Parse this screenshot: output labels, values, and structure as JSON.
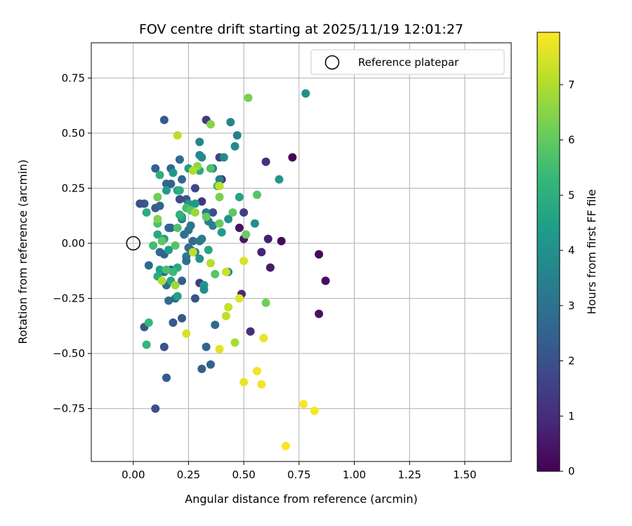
{
  "chart_data": {
    "type": "scatter",
    "title": "FOV centre drift starting at 2025/11/19 12:01:27",
    "xlabel": "Angular distance from reference (arcmin)",
    "ylabel": "Rotation from reference (arcmin)",
    "xlim": [
      -0.19,
      1.71
    ],
    "ylim": [
      -0.99,
      0.91
    ],
    "xticks": [
      "0.00",
      "0.25",
      "0.50",
      "0.75",
      "1.00",
      "1.25",
      "1.50"
    ],
    "xtick_values": [
      0,
      0.25,
      0.5,
      0.75,
      1.0,
      1.25,
      1.5
    ],
    "yticks": [
      "0.75",
      "0.50",
      "0.25",
      "0.00",
      "−0.25",
      "−0.50",
      "−0.75"
    ],
    "ytick_values": [
      0.75,
      0.5,
      0.25,
      0,
      -0.25,
      -0.5,
      -0.75
    ],
    "grid": true,
    "legend": {
      "position": "top-right",
      "label": "Reference platepar"
    },
    "reference_marker": {
      "x": 0,
      "y": 0
    },
    "colorbar": {
      "label": "Hours from first FF file",
      "min": 0,
      "max": 7.95,
      "ticks": [
        "0",
        "1",
        "2",
        "3",
        "4",
        "5",
        "6",
        "7"
      ],
      "tick_values": [
        0,
        1,
        2,
        3,
        4,
        5,
        6,
        7
      ],
      "colormap_stops": [
        "#440154",
        "#482878",
        "#3e4989",
        "#31688e",
        "#26828e",
        "#1f9e89",
        "#35b779",
        "#6ece58",
        "#b5de2b",
        "#fde725"
      ]
    },
    "points": [
      {
        "x": 0.72,
        "y": 0.39,
        "h": 0.1
      },
      {
        "x": 0.67,
        "y": 0.01,
        "h": 0.2
      },
      {
        "x": 0.84,
        "y": -0.05,
        "h": 0.2
      },
      {
        "x": 0.87,
        "y": -0.17,
        "h": 0.3
      },
      {
        "x": 0.84,
        "y": -0.32,
        "h": 0.4
      },
      {
        "x": 0.48,
        "y": 0.07,
        "h": 0.4
      },
      {
        "x": 0.5,
        "y": 0.02,
        "h": 0.5
      },
      {
        "x": 0.62,
        "y": -0.11,
        "h": 0.6
      },
      {
        "x": 0.61,
        "y": 0.02,
        "h": 0.7
      },
      {
        "x": 0.58,
        "y": -0.04,
        "h": 0.8
      },
      {
        "x": 0.49,
        "y": -0.23,
        "h": 0.9
      },
      {
        "x": 0.53,
        "y": -0.4,
        "h": 1.0
      },
      {
        "x": 0.6,
        "y": 0.37,
        "h": 1.1
      },
      {
        "x": 0.4,
        "y": 0.29,
        "h": 1.2
      },
      {
        "x": 0.33,
        "y": 0.56,
        "h": 1.3
      },
      {
        "x": 0.3,
        "y": -0.18,
        "h": 1.4
      },
      {
        "x": 0.31,
        "y": 0.19,
        "h": 1.3
      },
      {
        "x": 0.5,
        "y": 0.14,
        "h": 1.5
      },
      {
        "x": 0.39,
        "y": 0.39,
        "h": 1.6
      },
      {
        "x": 0.28,
        "y": 0.25,
        "h": 1.7
      },
      {
        "x": 0.26,
        "y": -0.03,
        "h": 1.8
      },
      {
        "x": 0.36,
        "y": 0.14,
        "h": 1.9
      },
      {
        "x": 0.28,
        "y": -0.25,
        "h": 2.0
      },
      {
        "x": 0.24,
        "y": 0.2,
        "h": 2.1
      },
      {
        "x": 0.21,
        "y": 0.2,
        "h": 1.9
      },
      {
        "x": 0.05,
        "y": 0.18,
        "h": 2.2
      },
      {
        "x": 0.03,
        "y": 0.18,
        "h": 2.0
      },
      {
        "x": 0.05,
        "y": -0.38,
        "h": 2.2
      },
      {
        "x": 0.1,
        "y": -0.75,
        "h": 2.0
      },
      {
        "x": 0.14,
        "y": -0.47,
        "h": 2.1
      },
      {
        "x": 0.14,
        "y": 0.56,
        "h": 2.3
      },
      {
        "x": 0.1,
        "y": 0.34,
        "h": 2.4
      },
      {
        "x": 0.1,
        "y": 0.16,
        "h": 2.3
      },
      {
        "x": 0.12,
        "y": 0.17,
        "h": 2.5
      },
      {
        "x": 0.15,
        "y": 0.27,
        "h": 2.6
      },
      {
        "x": 0.17,
        "y": 0.27,
        "h": 2.5
      },
      {
        "x": 0.17,
        "y": 0.34,
        "h": 2.7
      },
      {
        "x": 0.22,
        "y": 0.29,
        "h": 2.6
      },
      {
        "x": 0.21,
        "y": 0.38,
        "h": 2.8
      },
      {
        "x": 0.17,
        "y": -0.12,
        "h": 2.4
      },
      {
        "x": 0.14,
        "y": -0.13,
        "h": 2.6
      },
      {
        "x": 0.12,
        "y": -0.04,
        "h": 2.7
      },
      {
        "x": 0.14,
        "y": -0.05,
        "h": 2.5
      },
      {
        "x": 0.15,
        "y": -0.19,
        "h": 2.8
      },
      {
        "x": 0.16,
        "y": -0.26,
        "h": 2.9
      },
      {
        "x": 0.18,
        "y": -0.36,
        "h": 2.3
      },
      {
        "x": 0.22,
        "y": -0.34,
        "h": 2.2
      },
      {
        "x": 0.22,
        "y": -0.17,
        "h": 2.4
      },
      {
        "x": 0.19,
        "y": -0.25,
        "h": 2.7
      },
      {
        "x": 0.31,
        "y": -0.57,
        "h": 2.4
      },
      {
        "x": 0.33,
        "y": -0.47,
        "h": 2.6
      },
      {
        "x": 0.35,
        "y": -0.55,
        "h": 2.5
      },
      {
        "x": 0.15,
        "y": -0.61,
        "h": 2.3
      },
      {
        "x": 0.37,
        "y": -0.37,
        "h": 2.7
      },
      {
        "x": 0.07,
        "y": -0.1,
        "h": 2.8
      },
      {
        "x": 0.16,
        "y": 0.07,
        "h": 2.9
      },
      {
        "x": 0.17,
        "y": 0.07,
        "h": 2.6
      },
      {
        "x": 0.25,
        "y": -0.02,
        "h": 2.9
      },
      {
        "x": 0.27,
        "y": 0.01,
        "h": 2.8
      },
      {
        "x": 0.25,
        "y": 0.06,
        "h": 3.0
      },
      {
        "x": 0.26,
        "y": 0.08,
        "h": 3.1
      },
      {
        "x": 0.28,
        "y": -0.04,
        "h": 3.2
      },
      {
        "x": 0.24,
        "y": -0.06,
        "h": 3.3
      },
      {
        "x": 0.24,
        "y": -0.08,
        "h": 2.9
      },
      {
        "x": 0.23,
        "y": 0.04,
        "h": 3.0
      },
      {
        "x": 0.22,
        "y": 0.11,
        "h": 3.1
      },
      {
        "x": 0.3,
        "y": 0.01,
        "h": 3.0
      },
      {
        "x": 0.31,
        "y": 0.02,
        "h": 3.3
      },
      {
        "x": 0.34,
        "y": 0.1,
        "h": 3.5
      },
      {
        "x": 0.36,
        "y": 0.08,
        "h": 3.4
      },
      {
        "x": 0.33,
        "y": 0.14,
        "h": 3.2
      },
      {
        "x": 0.3,
        "y": 0.46,
        "h": 3.6
      },
      {
        "x": 0.3,
        "y": 0.4,
        "h": 3.7
      },
      {
        "x": 0.31,
        "y": 0.39,
        "h": 3.8
      },
      {
        "x": 0.36,
        "y": 0.34,
        "h": 3.5
      },
      {
        "x": 0.39,
        "y": 0.29,
        "h": 3.4
      },
      {
        "x": 0.41,
        "y": 0.39,
        "h": 3.8
      },
      {
        "x": 0.44,
        "y": 0.55,
        "h": 3.6
      },
      {
        "x": 0.46,
        "y": 0.44,
        "h": 3.7
      },
      {
        "x": 0.47,
        "y": 0.49,
        "h": 3.5
      },
      {
        "x": 0.55,
        "y": 0.09,
        "h": 3.9
      },
      {
        "x": 0.78,
        "y": 0.68,
        "h": 3.9
      },
      {
        "x": 0.66,
        "y": 0.29,
        "h": 4.2
      },
      {
        "x": 0.43,
        "y": 0.11,
        "h": 4.0
      },
      {
        "x": 0.4,
        "y": 0.05,
        "h": 4.3
      },
      {
        "x": 0.43,
        "y": -0.13,
        "h": 4.1
      },
      {
        "x": 0.32,
        "y": -0.19,
        "h": 4.2
      },
      {
        "x": 0.32,
        "y": -0.21,
        "h": 3.9
      },
      {
        "x": 0.3,
        "y": -0.07,
        "h": 4.0
      },
      {
        "x": 0.25,
        "y": 0.34,
        "h": 4.4
      },
      {
        "x": 0.28,
        "y": 0.18,
        "h": 4.3
      },
      {
        "x": 0.25,
        "y": 0.18,
        "h": 4.1
      },
      {
        "x": 0.2,
        "y": 0.24,
        "h": 4.5
      },
      {
        "x": 0.15,
        "y": 0.24,
        "h": 4.4
      },
      {
        "x": 0.18,
        "y": 0.32,
        "h": 4.2
      },
      {
        "x": 0.22,
        "y": 0.12,
        "h": 4.6
      },
      {
        "x": 0.26,
        "y": 0.15,
        "h": 4.7
      },
      {
        "x": 0.14,
        "y": 0.02,
        "h": 4.5
      },
      {
        "x": 0.16,
        "y": -0.03,
        "h": 4.4
      },
      {
        "x": 0.2,
        "y": -0.11,
        "h": 4.8
      },
      {
        "x": 0.17,
        "y": -0.17,
        "h": 4.7
      },
      {
        "x": 0.12,
        "y": -0.12,
        "h": 4.6
      },
      {
        "x": 0.11,
        "y": -0.15,
        "h": 4.9
      },
      {
        "x": 0.12,
        "y": 0.31,
        "h": 5.0
      },
      {
        "x": 0.06,
        "y": 0.14,
        "h": 4.9
      },
      {
        "x": 0.11,
        "y": 0.04,
        "h": 4.8
      },
      {
        "x": 0.2,
        "y": -0.24,
        "h": 4.5
      },
      {
        "x": 0.34,
        "y": -0.03,
        "h": 4.7
      },
      {
        "x": 0.3,
        "y": 0.33,
        "h": 4.8
      },
      {
        "x": 0.48,
        "y": 0.21,
        "h": 4.6
      },
      {
        "x": 0.21,
        "y": 0.24,
        "h": 5.0
      },
      {
        "x": 0.21,
        "y": 0.13,
        "h": 5.1
      },
      {
        "x": 0.06,
        "y": -0.46,
        "h": 5.2
      },
      {
        "x": 0.07,
        "y": -0.36,
        "h": 5.3
      },
      {
        "x": 0.18,
        "y": -0.13,
        "h": 5.4
      },
      {
        "x": 0.15,
        "y": -0.12,
        "h": 5.6
      },
      {
        "x": 0.09,
        "y": -0.01,
        "h": 5.5
      },
      {
        "x": 0.19,
        "y": -0.01,
        "h": 5.8
      },
      {
        "x": 0.2,
        "y": 0.07,
        "h": 5.7
      },
      {
        "x": 0.13,
        "y": 0.01,
        "h": 5.9
      },
      {
        "x": 0.11,
        "y": 0.09,
        "h": 5.6
      },
      {
        "x": 0.24,
        "y": 0.16,
        "h": 5.5
      },
      {
        "x": 0.26,
        "y": 0.15,
        "h": 5.9
      },
      {
        "x": 0.33,
        "y": 0.12,
        "h": 6.0
      },
      {
        "x": 0.37,
        "y": -0.14,
        "h": 5.8
      },
      {
        "x": 0.39,
        "y": 0.09,
        "h": 6.1
      },
      {
        "x": 0.35,
        "y": 0.34,
        "h": 5.7
      },
      {
        "x": 0.38,
        "y": 0.26,
        "h": 5.6
      },
      {
        "x": 0.45,
        "y": 0.14,
        "h": 5.9
      },
      {
        "x": 0.51,
        "y": 0.04,
        "h": 6.1
      },
      {
        "x": 0.56,
        "y": 0.22,
        "h": 5.8
      },
      {
        "x": 0.6,
        "y": -0.27,
        "h": 6.2
      },
      {
        "x": 0.52,
        "y": 0.66,
        "h": 6.3
      },
      {
        "x": 0.35,
        "y": 0.54,
        "h": 6.5
      },
      {
        "x": 0.11,
        "y": 0.21,
        "h": 6.2
      },
      {
        "x": 0.11,
        "y": 0.11,
        "h": 6.4
      },
      {
        "x": 0.39,
        "y": 0.21,
        "h": 6.3
      },
      {
        "x": 0.29,
        "y": 0.35,
        "h": 6.6
      },
      {
        "x": 0.28,
        "y": 0.14,
        "h": 6.7
      },
      {
        "x": 0.19,
        "y": -0.19,
        "h": 6.8
      },
      {
        "x": 0.13,
        "y": -0.17,
        "h": 7.0
      },
      {
        "x": 0.35,
        "y": -0.09,
        "h": 7.1
      },
      {
        "x": 0.27,
        "y": -0.04,
        "h": 7.2
      },
      {
        "x": 0.42,
        "y": -0.13,
        "h": 7.3
      },
      {
        "x": 0.46,
        "y": -0.45,
        "h": 6.9
      },
      {
        "x": 0.27,
        "y": 0.33,
        "h": 7.0
      },
      {
        "x": 0.2,
        "y": 0.49,
        "h": 7.1
      },
      {
        "x": 0.39,
        "y": 0.26,
        "h": 7.2
      },
      {
        "x": 0.43,
        "y": -0.29,
        "h": 7.3
      },
      {
        "x": 0.42,
        "y": -0.33,
        "h": 7.2
      },
      {
        "x": 0.48,
        "y": -0.25,
        "h": 7.6
      },
      {
        "x": 0.5,
        "y": -0.08,
        "h": 7.5
      },
      {
        "x": 0.24,
        "y": -0.41,
        "h": 7.5
      },
      {
        "x": 0.39,
        "y": -0.48,
        "h": 7.6
      },
      {
        "x": 0.59,
        "y": -0.43,
        "h": 7.7
      },
      {
        "x": 0.5,
        "y": -0.63,
        "h": 7.7
      },
      {
        "x": 0.56,
        "y": -0.58,
        "h": 7.8
      },
      {
        "x": 0.58,
        "y": -0.64,
        "h": 7.8
      },
      {
        "x": 0.77,
        "y": -0.73,
        "h": 7.9
      },
      {
        "x": 0.82,
        "y": -0.76,
        "h": 7.9
      },
      {
        "x": 0.69,
        "y": -0.92,
        "h": 7.9
      }
    ]
  }
}
